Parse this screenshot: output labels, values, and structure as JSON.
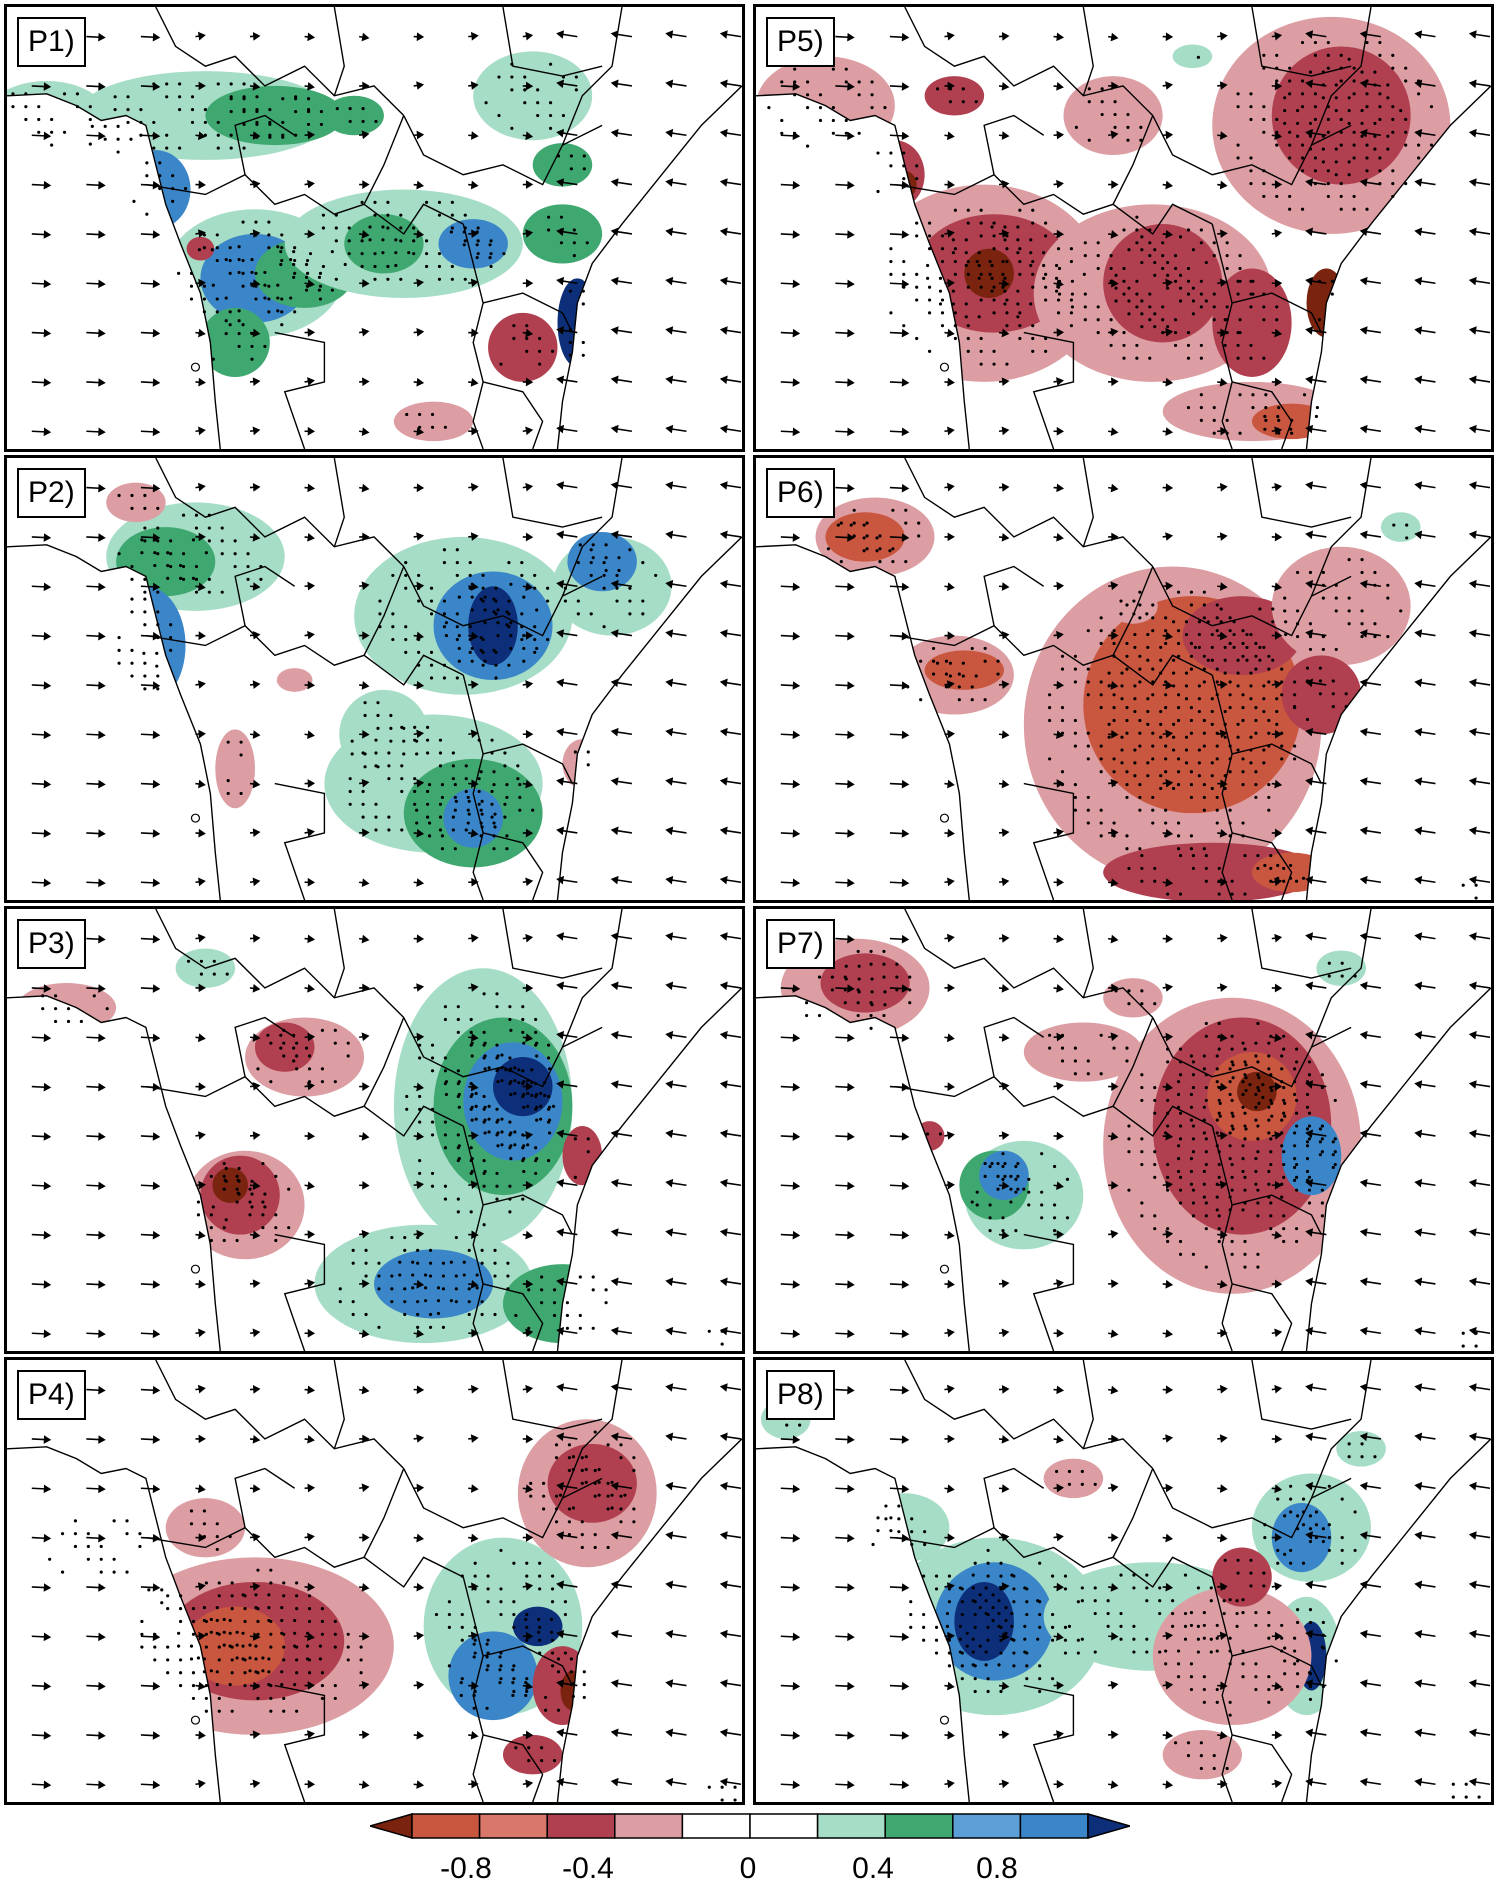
{
  "panels": [
    {
      "label": "P1)",
      "id": "P1"
    },
    {
      "label": "P2)",
      "id": "P2"
    },
    {
      "label": "P3)",
      "id": "P3"
    },
    {
      "label": "P4)",
      "id": "P4"
    },
    {
      "label": "P5)",
      "id": "P5"
    },
    {
      "label": "P6)",
      "id": "P6"
    },
    {
      "label": "P7)",
      "id": "P7"
    },
    {
      "label": "P8)",
      "id": "P8"
    }
  ],
  "colorbar": {
    "tick_labels": [
      "-0.8",
      "-0.4",
      "0",
      "0.4",
      "0.8"
    ],
    "colors": [
      "#7a2410",
      "#c9573f",
      "#d9786a",
      "#b0404f",
      "#dc9ea3",
      "#ffffff",
      "#ffffff",
      "#a6ddc6",
      "#3fa870",
      "#5b9fd6",
      "#3b86c8",
      "#0d2f7a"
    ]
  },
  "palette": {
    "neg_strong": "#c9573f",
    "neg_mid": "#b0404f",
    "neg_weak": "#dc9ea3",
    "pos_weak": "#a6ddc6",
    "pos_mid": "#3fa870",
    "pos_strong": "#3b86c8",
    "pos_max": "#0d2f7a",
    "neg_max": "#7a2410"
  }
}
